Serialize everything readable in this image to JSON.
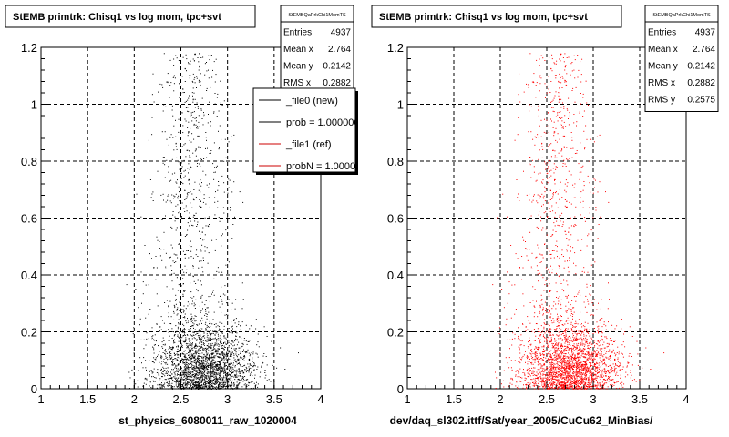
{
  "panels": [
    {
      "title": "StEMB primtrk: Chisq1 vs log mom, tpc+svt",
      "xlabel": "st_physics_6080011_raw_1020004",
      "stats": {
        "name": "StEMBQaPrkChi1MomTS",
        "rows": [
          {
            "label": "Entries",
            "value": "4937"
          },
          {
            "label": "Mean x",
            "value": "2.764"
          },
          {
            "label": "Mean y",
            "value": "0.2142"
          },
          {
            "label": "RMS x",
            "value": "0.2882"
          }
        ]
      },
      "legend": [
        {
          "label": "_file0 (new)",
          "color": "#000000"
        },
        {
          "label": "prob = 1.000000",
          "color": "#000000"
        },
        {
          "label": "_file1 (ref)",
          "color": "#cc0000"
        },
        {
          "label": "probN = 1.000000",
          "color": "#cc0000"
        }
      ],
      "marker_color": "#000000"
    },
    {
      "title": "StEMB primtrk: Chisq1 vs log mom, tpc+svt",
      "xlabel": "dev/daq_sl302.ittf/Sat/year_2005/CuCu62_MinBias/",
      "stats": {
        "name": "StEMBQaPrkChi1MomTS",
        "rows": [
          {
            "label": "Entries",
            "value": "4937"
          },
          {
            "label": "Mean x",
            "value": "2.764"
          },
          {
            "label": "Mean y",
            "value": "0.2142"
          },
          {
            "label": "RMS x",
            "value": "0.2882"
          },
          {
            "label": "RMS y",
            "value": "0.2575"
          }
        ]
      },
      "legend": [],
      "marker_color": "#ff0000"
    }
  ],
  "chart_data": [
    {
      "type": "scatter",
      "title": "StEMB primtrk: Chisq1 vs log mom, tpc+svt",
      "xlabel": "st_physics_6080011_raw_1020004",
      "ylabel": "",
      "xlim": [
        1,
        4
      ],
      "ylim": [
        0,
        1.2
      ],
      "xticks": [
        1,
        1.5,
        2,
        2.5,
        3,
        3.5,
        4
      ],
      "yticks": [
        0,
        0.2,
        0.4,
        0.6,
        0.8,
        1,
        1.2
      ],
      "grid": true,
      "entries": 4937,
      "mean_x": 2.764,
      "mean_y": 0.2142,
      "rms_x": 0.2882,
      "rms_y": 0.2575,
      "series": [
        {
          "name": "_file0 (new)",
          "color": "#000000"
        }
      ]
    },
    {
      "type": "scatter",
      "title": "StEMB primtrk: Chisq1 vs log mom, tpc+svt",
      "xlabel": "dev/daq_sl302.ittf/Sat/year_2005/CuCu62_MinBias/",
      "ylabel": "",
      "xlim": [
        1,
        4
      ],
      "ylim": [
        0,
        1.2
      ],
      "xticks": [
        1,
        1.5,
        2,
        2.5,
        3,
        3.5,
        4
      ],
      "yticks": [
        0,
        0.2,
        0.4,
        0.6,
        0.8,
        1,
        1.2
      ],
      "grid": true,
      "entries": 4937,
      "mean_x": 2.764,
      "mean_y": 0.2142,
      "rms_x": 0.2882,
      "rms_y": 0.2575,
      "series": [
        {
          "name": "_file1 (ref)",
          "color": "#ff0000"
        }
      ]
    }
  ]
}
